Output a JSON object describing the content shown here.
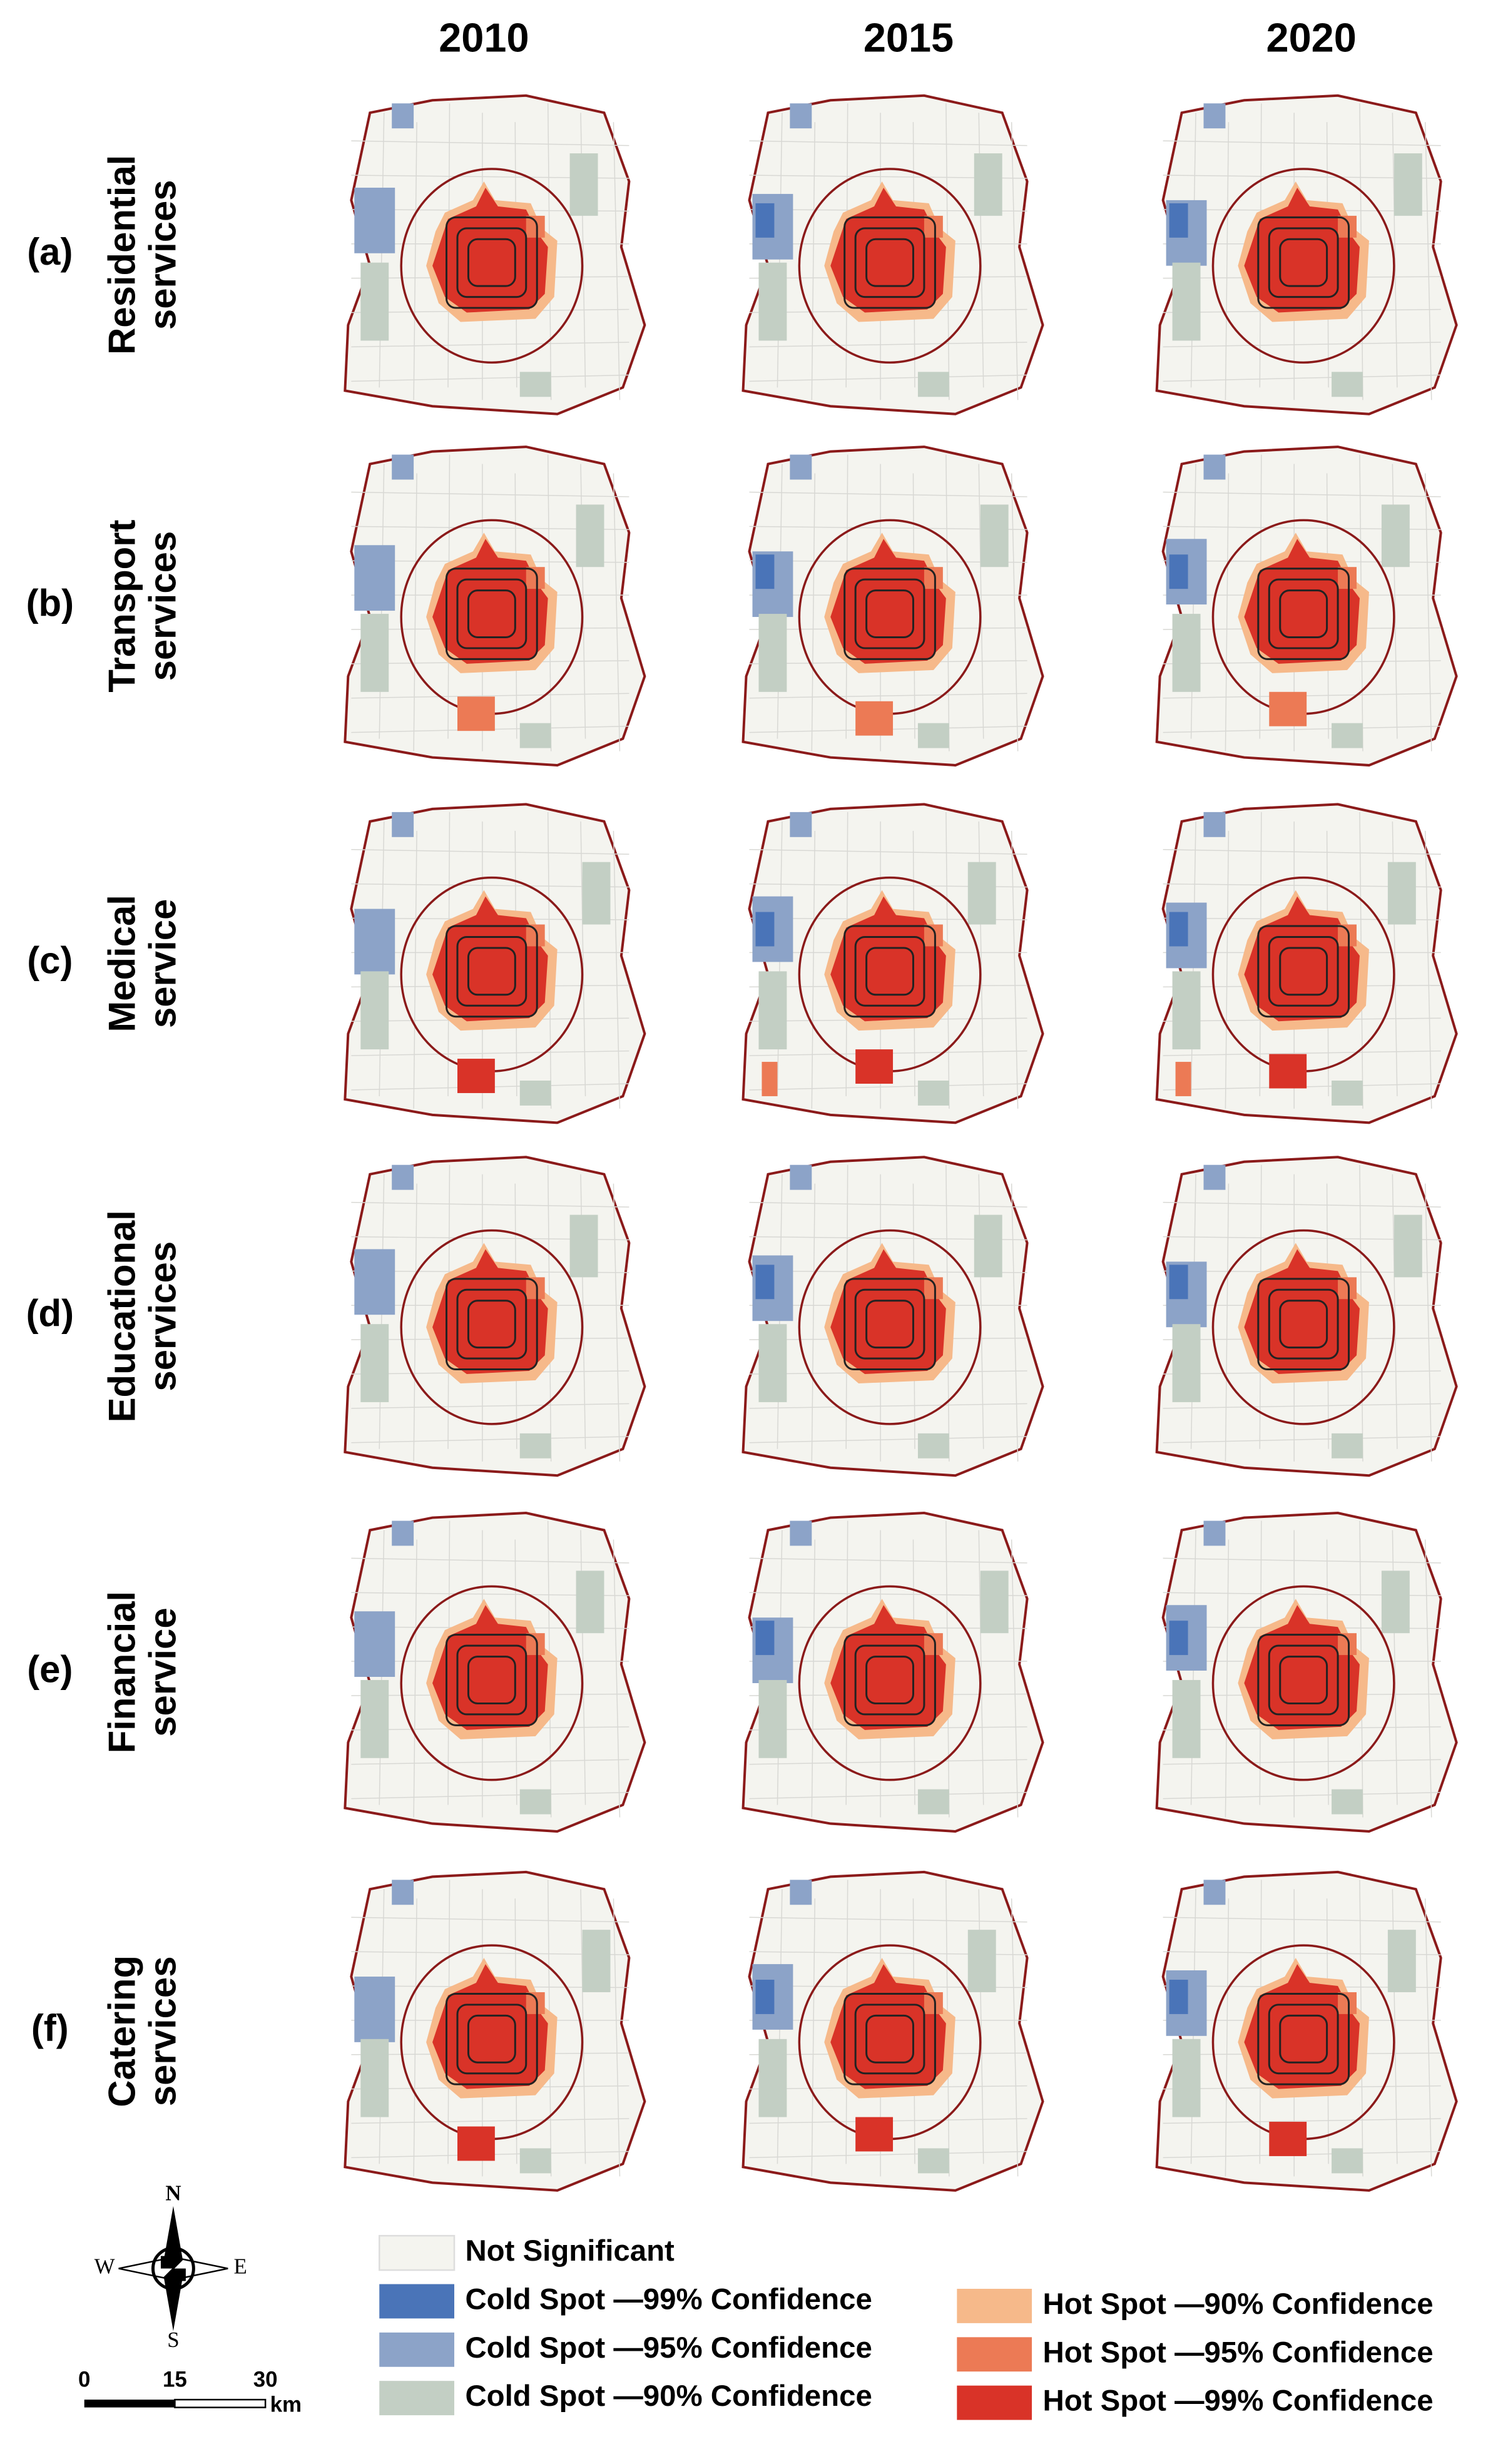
{
  "columns": [
    "2010",
    "2015",
    "2020"
  ],
  "rows": [
    {
      "letter": "(a)",
      "name": [
        "Residential",
        "services"
      ]
    },
    {
      "letter": "(b)",
      "name": [
        "Transport",
        "services"
      ]
    },
    {
      "letter": "(c)",
      "name": [
        "Medical",
        "service"
      ]
    },
    {
      "letter": "(d)",
      "name": [
        "Educational",
        "services"
      ]
    },
    {
      "letter": "(e)",
      "name": [
        "Financial",
        "service"
      ]
    },
    {
      "letter": "(f)",
      "name": [
        "Catering",
        "services"
      ]
    }
  ],
  "legend": [
    {
      "label": "Not Significant",
      "color": "#f4f4ef"
    },
    {
      "label": "Cold Spot —99% Confidence",
      "color": "#4a74b8"
    },
    {
      "label": "Cold Spot —95% Confidence",
      "color": "#8ca3c8"
    },
    {
      "label": "Cold Spot —90% Confidence",
      "color": "#c3cfc4"
    },
    {
      "label": "Hot Spot —90% Confidence",
      "color": "#f6b98a"
    },
    {
      "label": "Hot Spot —95% Confidence",
      "color": "#ec7a55"
    },
    {
      "label": "Hot Spot —99% Confidence",
      "color": "#d93328"
    }
  ],
  "compass": {
    "n": "N",
    "s": "S",
    "w": "W",
    "e": "E"
  },
  "scale": {
    "ticks": [
      "0",
      "15",
      "30"
    ],
    "unit": "km"
  }
}
